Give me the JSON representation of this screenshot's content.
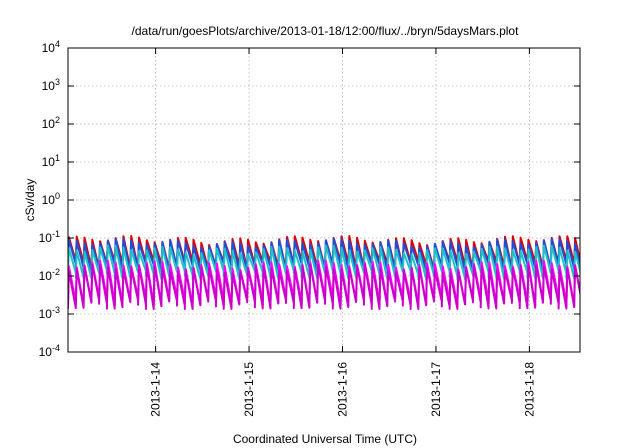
{
  "chart_data": {
    "type": "line",
    "title": "/data/run/goesPlots/archive/2013-01-18/12:00/flux/../bryn/5daysMars.plot",
    "xlabel": "Coordinated Universal Time (UTC)",
    "ylabel": "cSv/day",
    "yscale": "log",
    "ylim": [
      0.0001,
      10000
    ],
    "xlim": [
      "2013-01-13T01:30",
      "2013-01-18T13:00"
    ],
    "grid": true,
    "y_ticks": [
      {
        "base": "10",
        "exp": "-4"
      },
      {
        "base": "10",
        "exp": "-3"
      },
      {
        "base": "10",
        "exp": "-2"
      },
      {
        "base": "10",
        "exp": "-1"
      },
      {
        "base": "10",
        "exp": "0"
      },
      {
        "base": "10",
        "exp": "1"
      },
      {
        "base": "10",
        "exp": "2"
      },
      {
        "base": "10",
        "exp": "3"
      },
      {
        "base": "10",
        "exp": "4"
      }
    ],
    "x_ticks": [
      "2013-1-14",
      "2013-1-15",
      "2013-1-16",
      "2013-1-17",
      "2013-1-18"
    ],
    "sawtooth_period_hours": 2,
    "series": [
      {
        "color": "#dd0000",
        "peak": 0.09,
        "trough": 0.02
      },
      {
        "color": "#1f4fd8",
        "peak": 0.075,
        "trough": 0.017
      },
      {
        "color": "#20c0c8",
        "peak": 0.05,
        "trough": 0.011
      },
      {
        "color": "#ff00ff",
        "peak": 0.02,
        "trough": 0.0022
      },
      {
        "color": "#cc00cc",
        "peak": 0.016,
        "trough": 0.0018
      }
    ]
  }
}
